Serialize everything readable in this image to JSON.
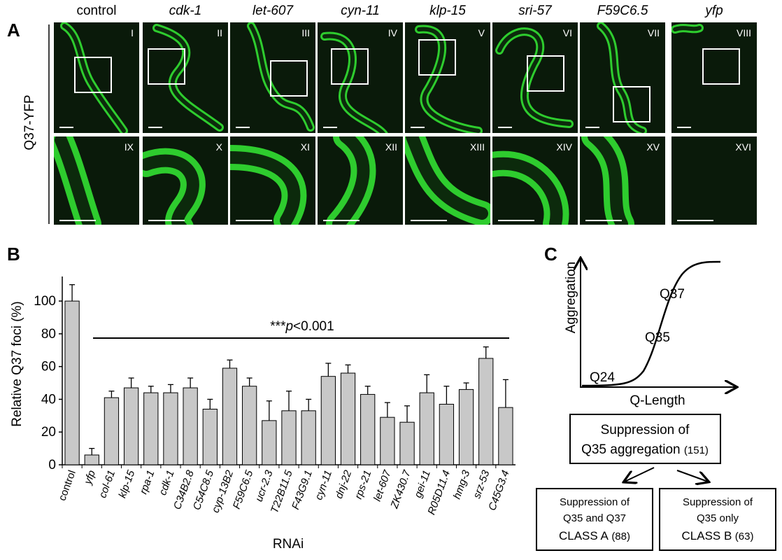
{
  "panel_a": {
    "letter": "A",
    "row_label": "Q37-YFP",
    "columns": [
      "control",
      "cdk-1",
      "let-607",
      "cyn-11",
      "klp-15",
      "sri-57",
      "F59C6.5",
      "yfp"
    ],
    "numerals": [
      "I",
      "II",
      "III",
      "IV",
      "V",
      "VI",
      "VII",
      "VIII",
      "IX",
      "X",
      "XI",
      "XII",
      "XIII",
      "XIV",
      "XV",
      "XVI"
    ]
  },
  "chart_data": {
    "type": "bar",
    "letter": "B",
    "ylabel": "Relative Q37 foci (%)",
    "xlabel": "RNAi",
    "categories": [
      "control",
      "yfp",
      "col-61",
      "klp-15",
      "rpa-1",
      "cdk-1",
      "C34B2.8",
      "C54C8.5",
      "cyp-13B2",
      "F59C6.5",
      "ucr-2.3",
      "T22B11.5",
      "F43G9.1",
      "cyn-11",
      "dnj-22",
      "rps-21",
      "let-607",
      "ZK430.7",
      "gei-11",
      "R05D11.4",
      "hmg-3",
      "srz-53",
      "C45G3.4"
    ],
    "values": [
      100,
      6,
      41,
      47,
      44,
      44,
      47,
      34,
      59,
      48,
      27,
      33,
      33,
      54,
      56,
      43,
      29,
      26,
      44,
      37,
      46,
      65,
      35
    ],
    "errors": [
      10,
      4,
      4,
      6,
      4,
      5,
      6,
      6,
      5,
      5,
      12,
      12,
      7,
      8,
      5,
      5,
      9,
      10,
      11,
      11,
      4,
      7,
      17
    ],
    "color": "#c8c8c8",
    "ylim": [
      0,
      115
    ],
    "yticks": [
      0,
      20,
      40,
      60,
      80,
      100
    ],
    "significance": {
      "stars": "***",
      "p": "p",
      "threshold": "<0.001"
    }
  },
  "panel_c": {
    "letter": "C",
    "y_axis": "Aggregation",
    "x_axis": "Q-Length",
    "points": [
      "Q24",
      "Q35",
      "Q37"
    ],
    "top_box": {
      "line1": "Suppression of",
      "line2": "Q35 aggregation",
      "count": "(151)"
    },
    "class_a": {
      "line1": "Suppression of",
      "line2": "Q35 and Q37",
      "class": "CLASS A",
      "count": "(88)"
    },
    "class_b": {
      "line1": "Suppression of",
      "line2": "Q35 only",
      "class": "CLASS B",
      "count": "(63)"
    }
  }
}
